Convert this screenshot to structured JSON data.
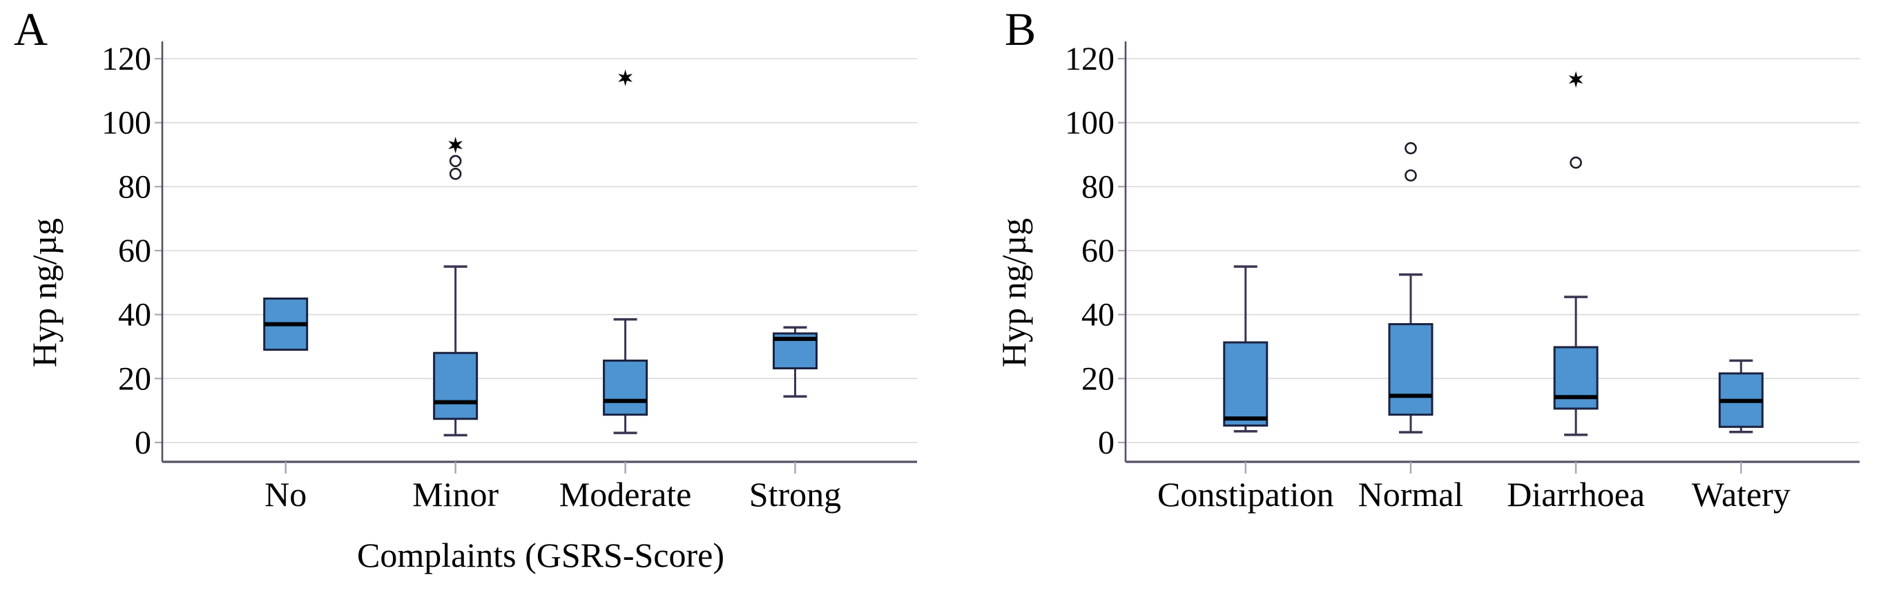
{
  "panels": {
    "a_letter": "A",
    "b_letter": "B"
  },
  "chart_data": [
    {
      "type": "boxplot",
      "panel": "A",
      "title": "",
      "xlabel": "Complaints (GSRS-Score)",
      "ylabel": "Hyp ng/µg",
      "ylim": [
        0,
        120
      ],
      "yticks": [
        0,
        20,
        40,
        60,
        80,
        100,
        120
      ],
      "grid": true,
      "legend": "none",
      "categories": [
        "No",
        "Minor",
        "Moderate",
        "Strong"
      ],
      "boxes": [
        {
          "category": "No",
          "whisker_low": 29,
          "q1": 29,
          "median": 37,
          "q3": 45,
          "whisker_high": 45,
          "outliers_circle": [],
          "outliers_star": []
        },
        {
          "category": "Minor",
          "whisker_low": 2.3,
          "q1": 7.4,
          "median": 12.6,
          "q3": 28,
          "whisker_high": 55,
          "outliers_circle": [
            84,
            88
          ],
          "outliers_star": [
            93
          ]
        },
        {
          "category": "Moderate",
          "whisker_low": 3,
          "q1": 8.7,
          "median": 13,
          "q3": 25.6,
          "whisker_high": 38.5,
          "outliers_circle": [],
          "outliers_star": [
            114
          ]
        },
        {
          "category": "Strong",
          "whisker_low": 14.4,
          "q1": 23.2,
          "median": 32.4,
          "q3": 34.1,
          "whisker_high": 36,
          "outliers_circle": [],
          "outliers_star": []
        }
      ]
    },
    {
      "type": "boxplot",
      "panel": "B",
      "title": "",
      "xlabel": "",
      "ylabel": "Hyp ng/µg",
      "ylim": [
        0,
        120
      ],
      "yticks": [
        0,
        20,
        40,
        60,
        80,
        100,
        120
      ],
      "grid": true,
      "legend": "none",
      "categories": [
        "Constipation",
        "Normal",
        "Diarrhoea",
        "Watery"
      ],
      "boxes": [
        {
          "category": "Constipation",
          "whisker_low": 3.5,
          "q1": 5.3,
          "median": 7.5,
          "q3": 31.3,
          "whisker_high": 55,
          "outliers_circle": [],
          "outliers_star": []
        },
        {
          "category": "Normal",
          "whisker_low": 3.2,
          "q1": 8.7,
          "median": 14.6,
          "q3": 37,
          "whisker_high": 52.5,
          "outliers_circle": [
            83.5,
            92
          ],
          "outliers_star": []
        },
        {
          "category": "Diarrhoea",
          "whisker_low": 2.4,
          "q1": 10.6,
          "median": 14.2,
          "q3": 29.8,
          "whisker_high": 45.5,
          "outliers_circle": [
            87.5
          ],
          "outliers_star": [
            113.5
          ]
        },
        {
          "category": "Watery",
          "whisker_low": 3.3,
          "q1": 4.9,
          "median": 13,
          "q3": 21.6,
          "whisker_high": 25.6,
          "outliers_circle": [],
          "outliers_star": []
        }
      ]
    }
  ],
  "style": {
    "box_fill": "#4d94d0",
    "box_edge": "#1c2240",
    "median_color": "#000000",
    "whisker_color": "#3b3552",
    "gridline_color": "#d8d8d8",
    "spine_color": "#575064",
    "tick_color": "#a9a4b2",
    "outlier_edge": "#1c1c2a",
    "text_color": "#000000",
    "background": "#ffffff"
  }
}
